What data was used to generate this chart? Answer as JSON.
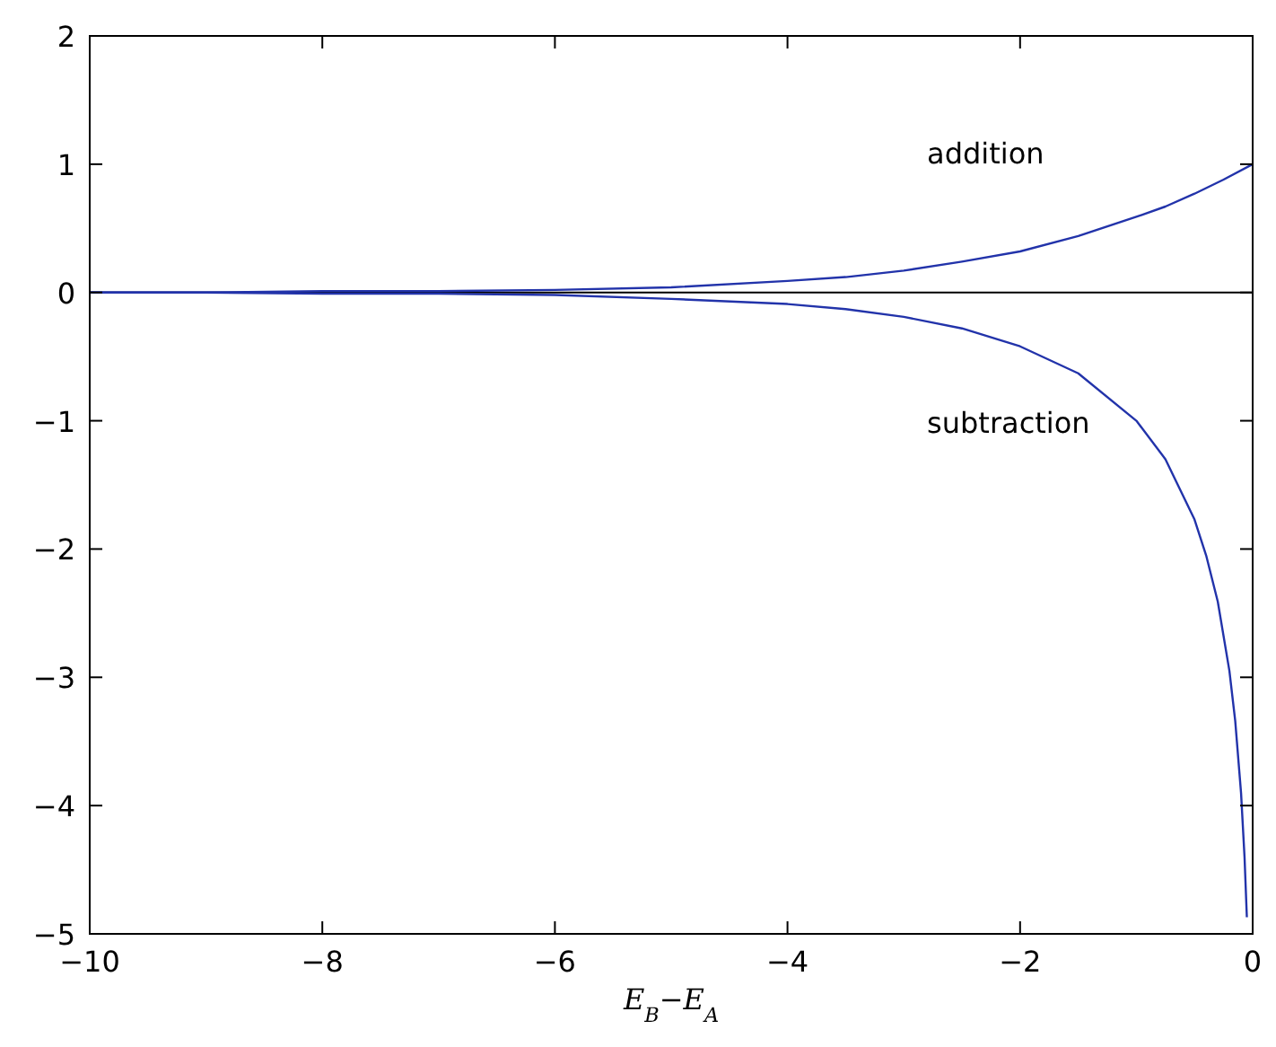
{
  "chart_data": {
    "type": "line",
    "xlabel": "E$_{B}$−E$_{A}$",
    "xlim": [
      -10,
      0
    ],
    "ylim": [
      -5,
      2
    ],
    "xticks": [
      {
        "value": -10,
        "label": "−10"
      },
      {
        "value": -8,
        "label": "−8"
      },
      {
        "value": -6,
        "label": "−6"
      },
      {
        "value": -4,
        "label": "−4"
      },
      {
        "value": -2,
        "label": "−2"
      },
      0
    ],
    "yticks": [
      {
        "value": -5,
        "label": "−5"
      },
      {
        "value": -4,
        "label": "−4"
      },
      {
        "value": -3,
        "label": "−3"
      },
      {
        "value": -2,
        "label": "−2"
      },
      {
        "value": -1,
        "label": "−1"
      },
      0,
      1,
      2
    ],
    "grid": false,
    "line_style": "solid",
    "ref_lines": [
      {
        "axis": "y",
        "value": 0,
        "color": "#000000"
      }
    ],
    "series": [
      {
        "color": "#2233aa",
        "x": [
          -10,
          -9,
          -8,
          -7,
          -6,
          -5,
          -4,
          -3.5,
          -3,
          -2.5,
          -2,
          -1.5,
          -1,
          -0.75,
          -0.5,
          -0.25,
          0
        ],
        "values": [
          0,
          0,
          0.01,
          0.01,
          0.02,
          0.04,
          0.09,
          0.12,
          0.17,
          0.24,
          0.32,
          0.44,
          0.59,
          0.67,
          0.77,
          0.88,
          1
        ]
      },
      {
        "color": "#2233aa",
        "x": [
          -10,
          -9,
          -8,
          -7,
          -6,
          -5,
          -4,
          -3.5,
          -3,
          -2.5,
          -2,
          -1.5,
          -1,
          -0.75,
          -0.5,
          -0.4,
          -0.3,
          -0.2,
          -0.15,
          -0.1,
          -0.07,
          -0.05
        ],
        "values": [
          0,
          0,
          -0.01,
          -0.01,
          -0.02,
          -0.05,
          -0.09,
          -0.13,
          -0.19,
          -0.28,
          -0.42,
          -0.63,
          -1,
          -1.3,
          -1.77,
          -2.05,
          -2.41,
          -2.95,
          -3.34,
          -3.9,
          -4.4,
          -4.87
        ]
      }
    ],
    "annotations": [
      "addition",
      "subtraction"
    ]
  }
}
